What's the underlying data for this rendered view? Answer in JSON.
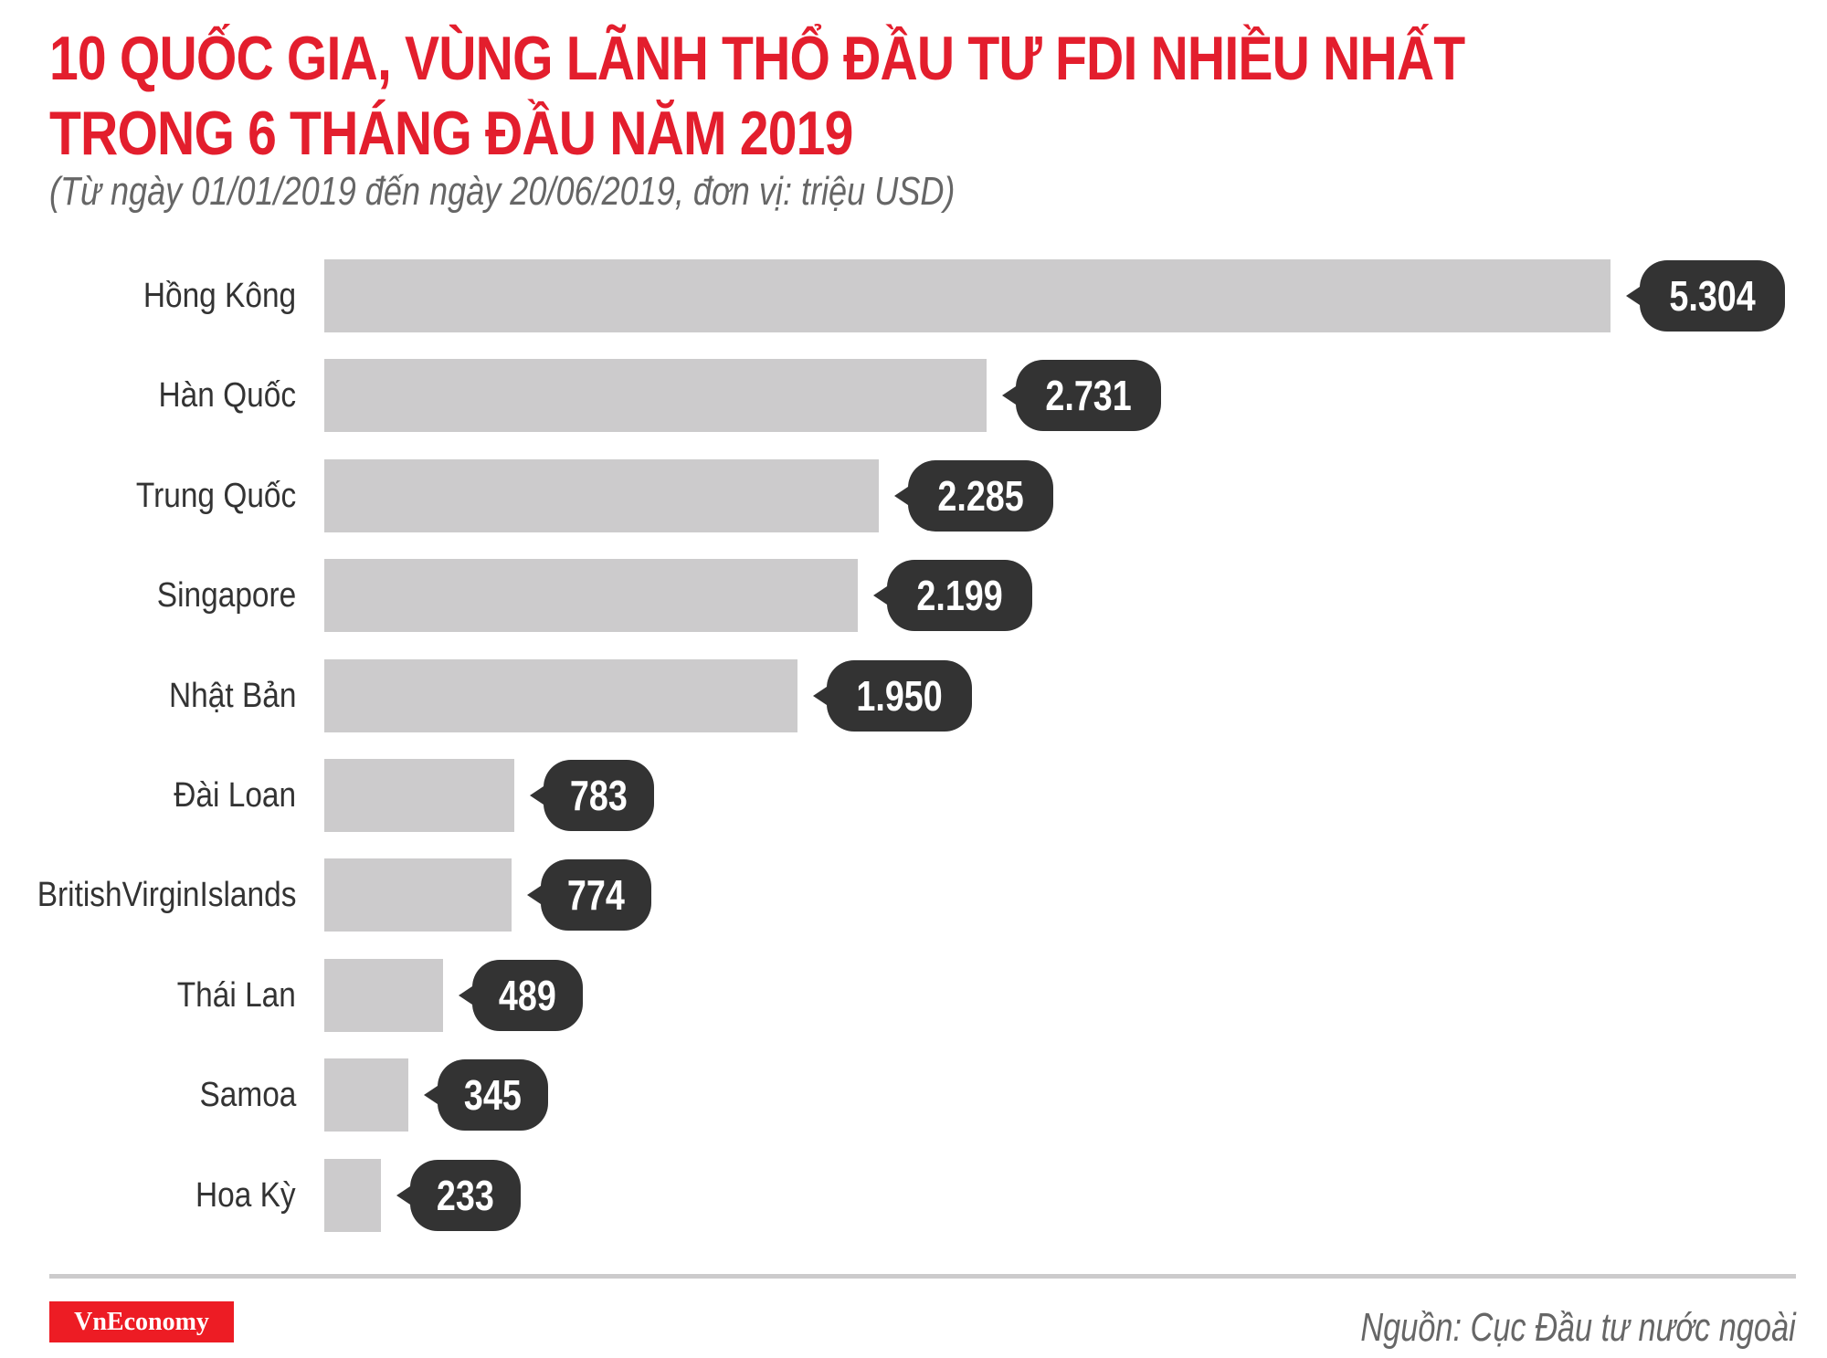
{
  "header": {
    "title_line1": "10 QUỐC GIA, VÙNG LÃNH THỔ ĐẦU TƯ FDI NHIỀU NHẤT",
    "title_line2": "TRONG 6 THÁNG ĐẦU NĂM 2019",
    "subtitle": "(Từ ngày 01/01/2019 đến ngày 20/06/2019, đơn vị: triệu USD)"
  },
  "footer": {
    "logo": "VnEconomy",
    "source": "Nguồn: Cục Đầu tư nước ngoài"
  },
  "colors": {
    "title": "#e31e2d",
    "bar": "#cccbcc",
    "bubble": "#333333",
    "logo_bg": "#ed1c24"
  },
  "chart_data": {
    "type": "bar",
    "orientation": "horizontal",
    "title": "10 QUỐC GIA, VÙNG LÃNH THỔ ĐẦU TƯ FDI NHIỀU NHẤT TRONG 6 THÁNG ĐẦU NĂM 2019",
    "subtitle": "(Từ ngày 01/01/2019 đến ngày 20/06/2019, đơn vị: triệu USD)",
    "xlabel": "",
    "ylabel": "",
    "unit": "triệu USD",
    "grid": false,
    "legend": null,
    "categories": [
      "Hồng Kông",
      "Hàn Quốc",
      "Trung Quốc",
      "Singapore",
      "Nhật Bản",
      "Đài Loan",
      "BritishVirginIslands",
      "Thái Lan",
      "Samoa",
      "Hoa Kỳ"
    ],
    "values": [
      5304,
      2731,
      2285,
      2199,
      1950,
      783,
      774,
      489,
      345,
      233
    ],
    "value_labels": [
      "5.304",
      "2.731",
      "2.285",
      "2.199",
      "1.950",
      "783",
      "774",
      "489",
      "345",
      "233"
    ],
    "xlim": [
      0,
      5304
    ]
  }
}
